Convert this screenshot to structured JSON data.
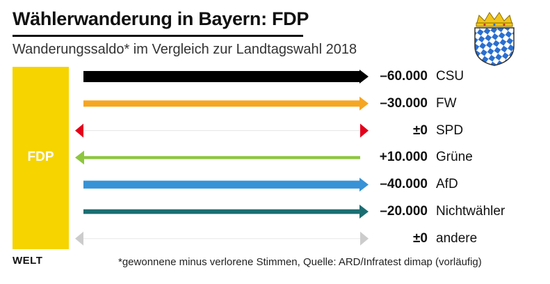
{
  "chart_data": {
    "type": "bar",
    "title": "Wählerwanderung in Bayern: FDP",
    "subtitle": "Wanderungssaldo* im Vergleich zur Landtagswahl 2018",
    "party": "FDP",
    "categories": [
      "CSU",
      "FW",
      "SPD",
      "Grüne",
      "AfD",
      "Nichtwähler",
      "andere"
    ],
    "values": [
      -60000,
      -30000,
      0,
      10000,
      -40000,
      -20000,
      0
    ],
    "value_labels": [
      "–60.000",
      "–30.000",
      "±0",
      "+10.000",
      "–40.000",
      "–20.000",
      "±0"
    ],
    "colors": [
      "#000000",
      "#f5a623",
      "#e3001b",
      "#8dc63f",
      "#3792d6",
      "#1a6e72",
      "#cccccc"
    ],
    "footnote": "*gewonnene minus verlorene Stimmen, Quelle: ARD/Infratest dimap (vorläufig)",
    "brand": "WELT"
  }
}
